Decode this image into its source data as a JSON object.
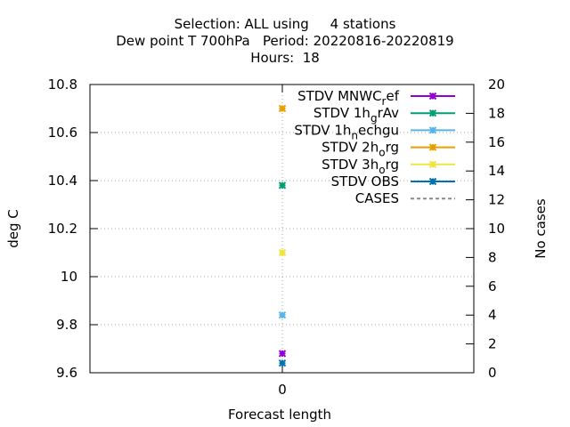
{
  "title_lines": [
    "Selection: ALL using     4 stations",
    "Dew point T 700hPa   Period: 20220816-20220819",
    "Hours:  18"
  ],
  "chart_data": {
    "type": "scatter",
    "xlabel": "Forecast length",
    "ylabel": "deg C",
    "y2label": "No cases",
    "x_ticks": [
      "0"
    ],
    "x": [
      0
    ],
    "ylim": [
      9.6,
      10.8
    ],
    "y_ticks": [
      "9.6",
      "9.8",
      "10",
      "10.2",
      "10.4",
      "10.6",
      "10.8"
    ],
    "y2lim": [
      0,
      20
    ],
    "y2_ticks": [
      "0",
      "2",
      "4",
      "6",
      "8",
      "10",
      "12",
      "14",
      "16",
      "18",
      "20"
    ],
    "grid": true,
    "legend_position": "top-right",
    "series": [
      {
        "name": "STDV MNWC_ref",
        "label_main": "STDV MNWC",
        "label_sub": "r",
        "label_tail": "ef",
        "color": "#9400d3",
        "values": [
          9.68
        ]
      },
      {
        "name": "STDV 1h_grAv",
        "label_main": "STDV 1h",
        "label_sub": "g",
        "label_tail": "rAv",
        "color": "#009e73",
        "values": [
          10.38
        ]
      },
      {
        "name": "STDV 1h_nechgu",
        "label_main": "STDV 1h",
        "label_sub": "n",
        "label_tail": "echgu",
        "color": "#56b4e9",
        "values": [
          9.84
        ]
      },
      {
        "name": "STDV 2h_org",
        "label_main": "STDV 2h",
        "label_sub": "o",
        "label_tail": "rg",
        "color": "#e69f00",
        "values": [
          10.7
        ]
      },
      {
        "name": "STDV 3h_org",
        "label_main": "STDV 3h",
        "label_sub": "o",
        "label_tail": "rg",
        "color": "#f0e442",
        "values": [
          10.1
        ]
      },
      {
        "name": "STDV OBS",
        "label_main": "STDV OBS",
        "label_sub": "",
        "label_tail": "",
        "color": "#0072b2",
        "values": [
          9.64
        ]
      },
      {
        "name": "CASES",
        "label_main": "CASES",
        "label_sub": "",
        "label_tail": "",
        "color": "#888888",
        "dashed": true,
        "values": []
      }
    ]
  }
}
